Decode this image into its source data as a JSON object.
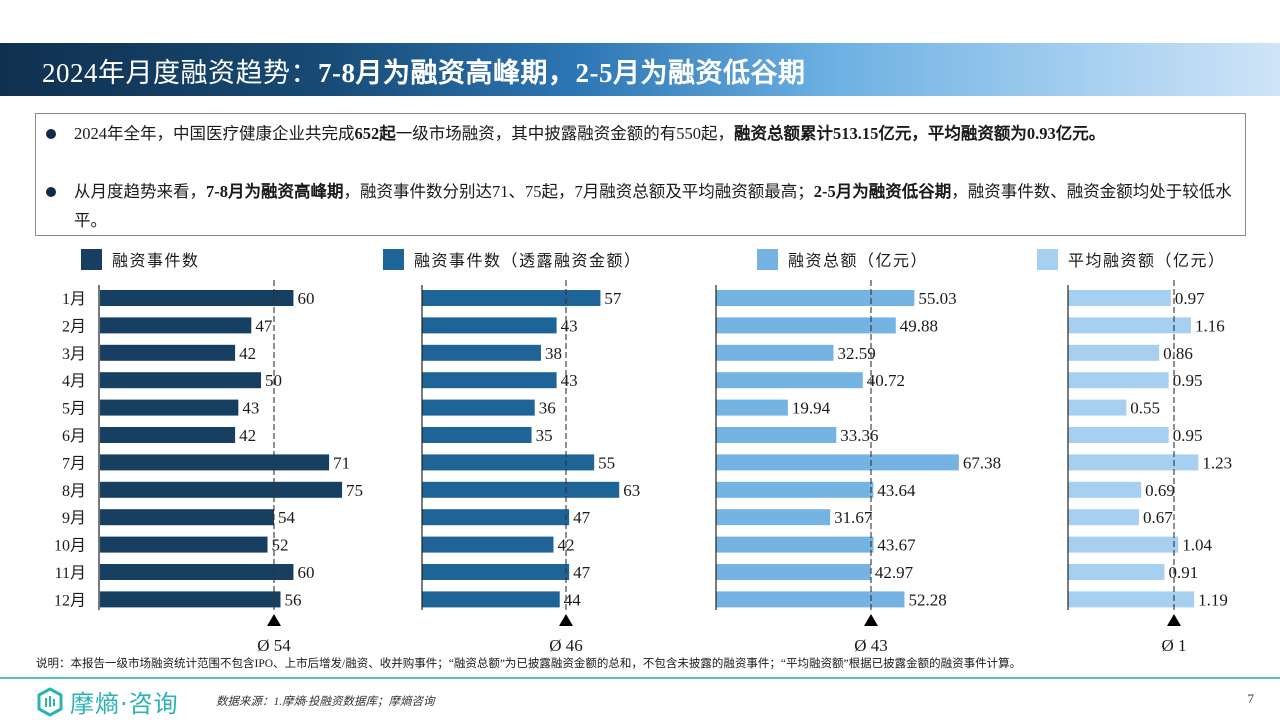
{
  "title": {
    "part1": "2024年月度融资趋势：",
    "part2": "7-8月为融资高峰期，",
    "part3": "2-5月为融资低谷期"
  },
  "summary": {
    "bullet1": {
      "t1": "2024年全年，中国医疗健康企业共完成",
      "b1": "652起",
      "t2": "一级市场融资，其中披露融资金额的有550起，",
      "b2": "融资总额累计513.15亿元，平均融资额为0.93亿元。"
    },
    "bullet2": {
      "t1": "从月度趋势来看，",
      "b1": "7-8月为融资高峰期",
      "t2": "，融资事件数分别达71、75起，7月融资总额及平均融资额最高；",
      "b2": "2-5月为融资低谷期",
      "t3": "，融资事件数、融资金额均处于较低水平。"
    }
  },
  "colors": {
    "series1": "#163f62",
    "series2": "#1f6496",
    "series3": "#74b3e2",
    "series4": "#a7d0f0",
    "accent_teal": "#2bb3b1"
  },
  "chart_data": [
    {
      "type": "bar",
      "orientation": "horizontal",
      "title": "融资事件数",
      "categories": [
        "1月",
        "2月",
        "3月",
        "4月",
        "5月",
        "6月",
        "7月",
        "8月",
        "9月",
        "10月",
        "11月",
        "12月"
      ],
      "values": [
        60,
        47,
        42,
        50,
        43,
        42,
        71,
        75,
        54,
        52,
        60,
        56
      ],
      "average": 54,
      "average_label": "Ø 54",
      "xlim": [
        0,
        80
      ]
    },
    {
      "type": "bar",
      "orientation": "horizontal",
      "title": "融资事件数（透露融资金额）",
      "categories": [
        "1月",
        "2月",
        "3月",
        "4月",
        "5月",
        "6月",
        "7月",
        "8月",
        "9月",
        "10月",
        "11月",
        "12月"
      ],
      "values": [
        57,
        43,
        38,
        43,
        36,
        35,
        55,
        63,
        47,
        42,
        47,
        44
      ],
      "average": 46,
      "average_label": "Ø 46",
      "xlim": [
        0,
        80
      ]
    },
    {
      "type": "bar",
      "orientation": "horizontal",
      "title": "融资总额（亿元）",
      "categories": [
        "1月",
        "2月",
        "3月",
        "4月",
        "5月",
        "6月",
        "7月",
        "8月",
        "9月",
        "10月",
        "11月",
        "12月"
      ],
      "values": [
        55.03,
        49.88,
        32.59,
        40.72,
        19.94,
        33.36,
        67.38,
        43.64,
        31.67,
        43.67,
        42.97,
        52.28
      ],
      "average": 43,
      "average_label": "Ø 43",
      "xlim": [
        0,
        80
      ]
    },
    {
      "type": "bar",
      "orientation": "horizontal",
      "title": "平均融资额（亿元）",
      "categories": [
        "1月",
        "2月",
        "3月",
        "4月",
        "5月",
        "6月",
        "7月",
        "8月",
        "9月",
        "10月",
        "11月",
        "12月"
      ],
      "values": [
        0.97,
        1.16,
        0.86,
        0.95,
        0.55,
        0.95,
        1.23,
        0.69,
        0.67,
        1.04,
        0.91,
        1.19
      ],
      "average": 1,
      "average_label": "Ø 1",
      "xlim": [
        0,
        2.6
      ]
    }
  ],
  "note": "说明：本报告一级市场融资统计范围不包含IPO、上市后增发/融资、收并购事件；“融资总额”为已披露融资金额的总和，不包含未披露的融资事件；“平均融资额”根据已披露金额的融资事件计算。",
  "footer": {
    "logo_text": "摩熵·咨询",
    "source": "数据来源：1.摩熵·投融资数据库；摩熵咨询",
    "page_number": "7"
  }
}
